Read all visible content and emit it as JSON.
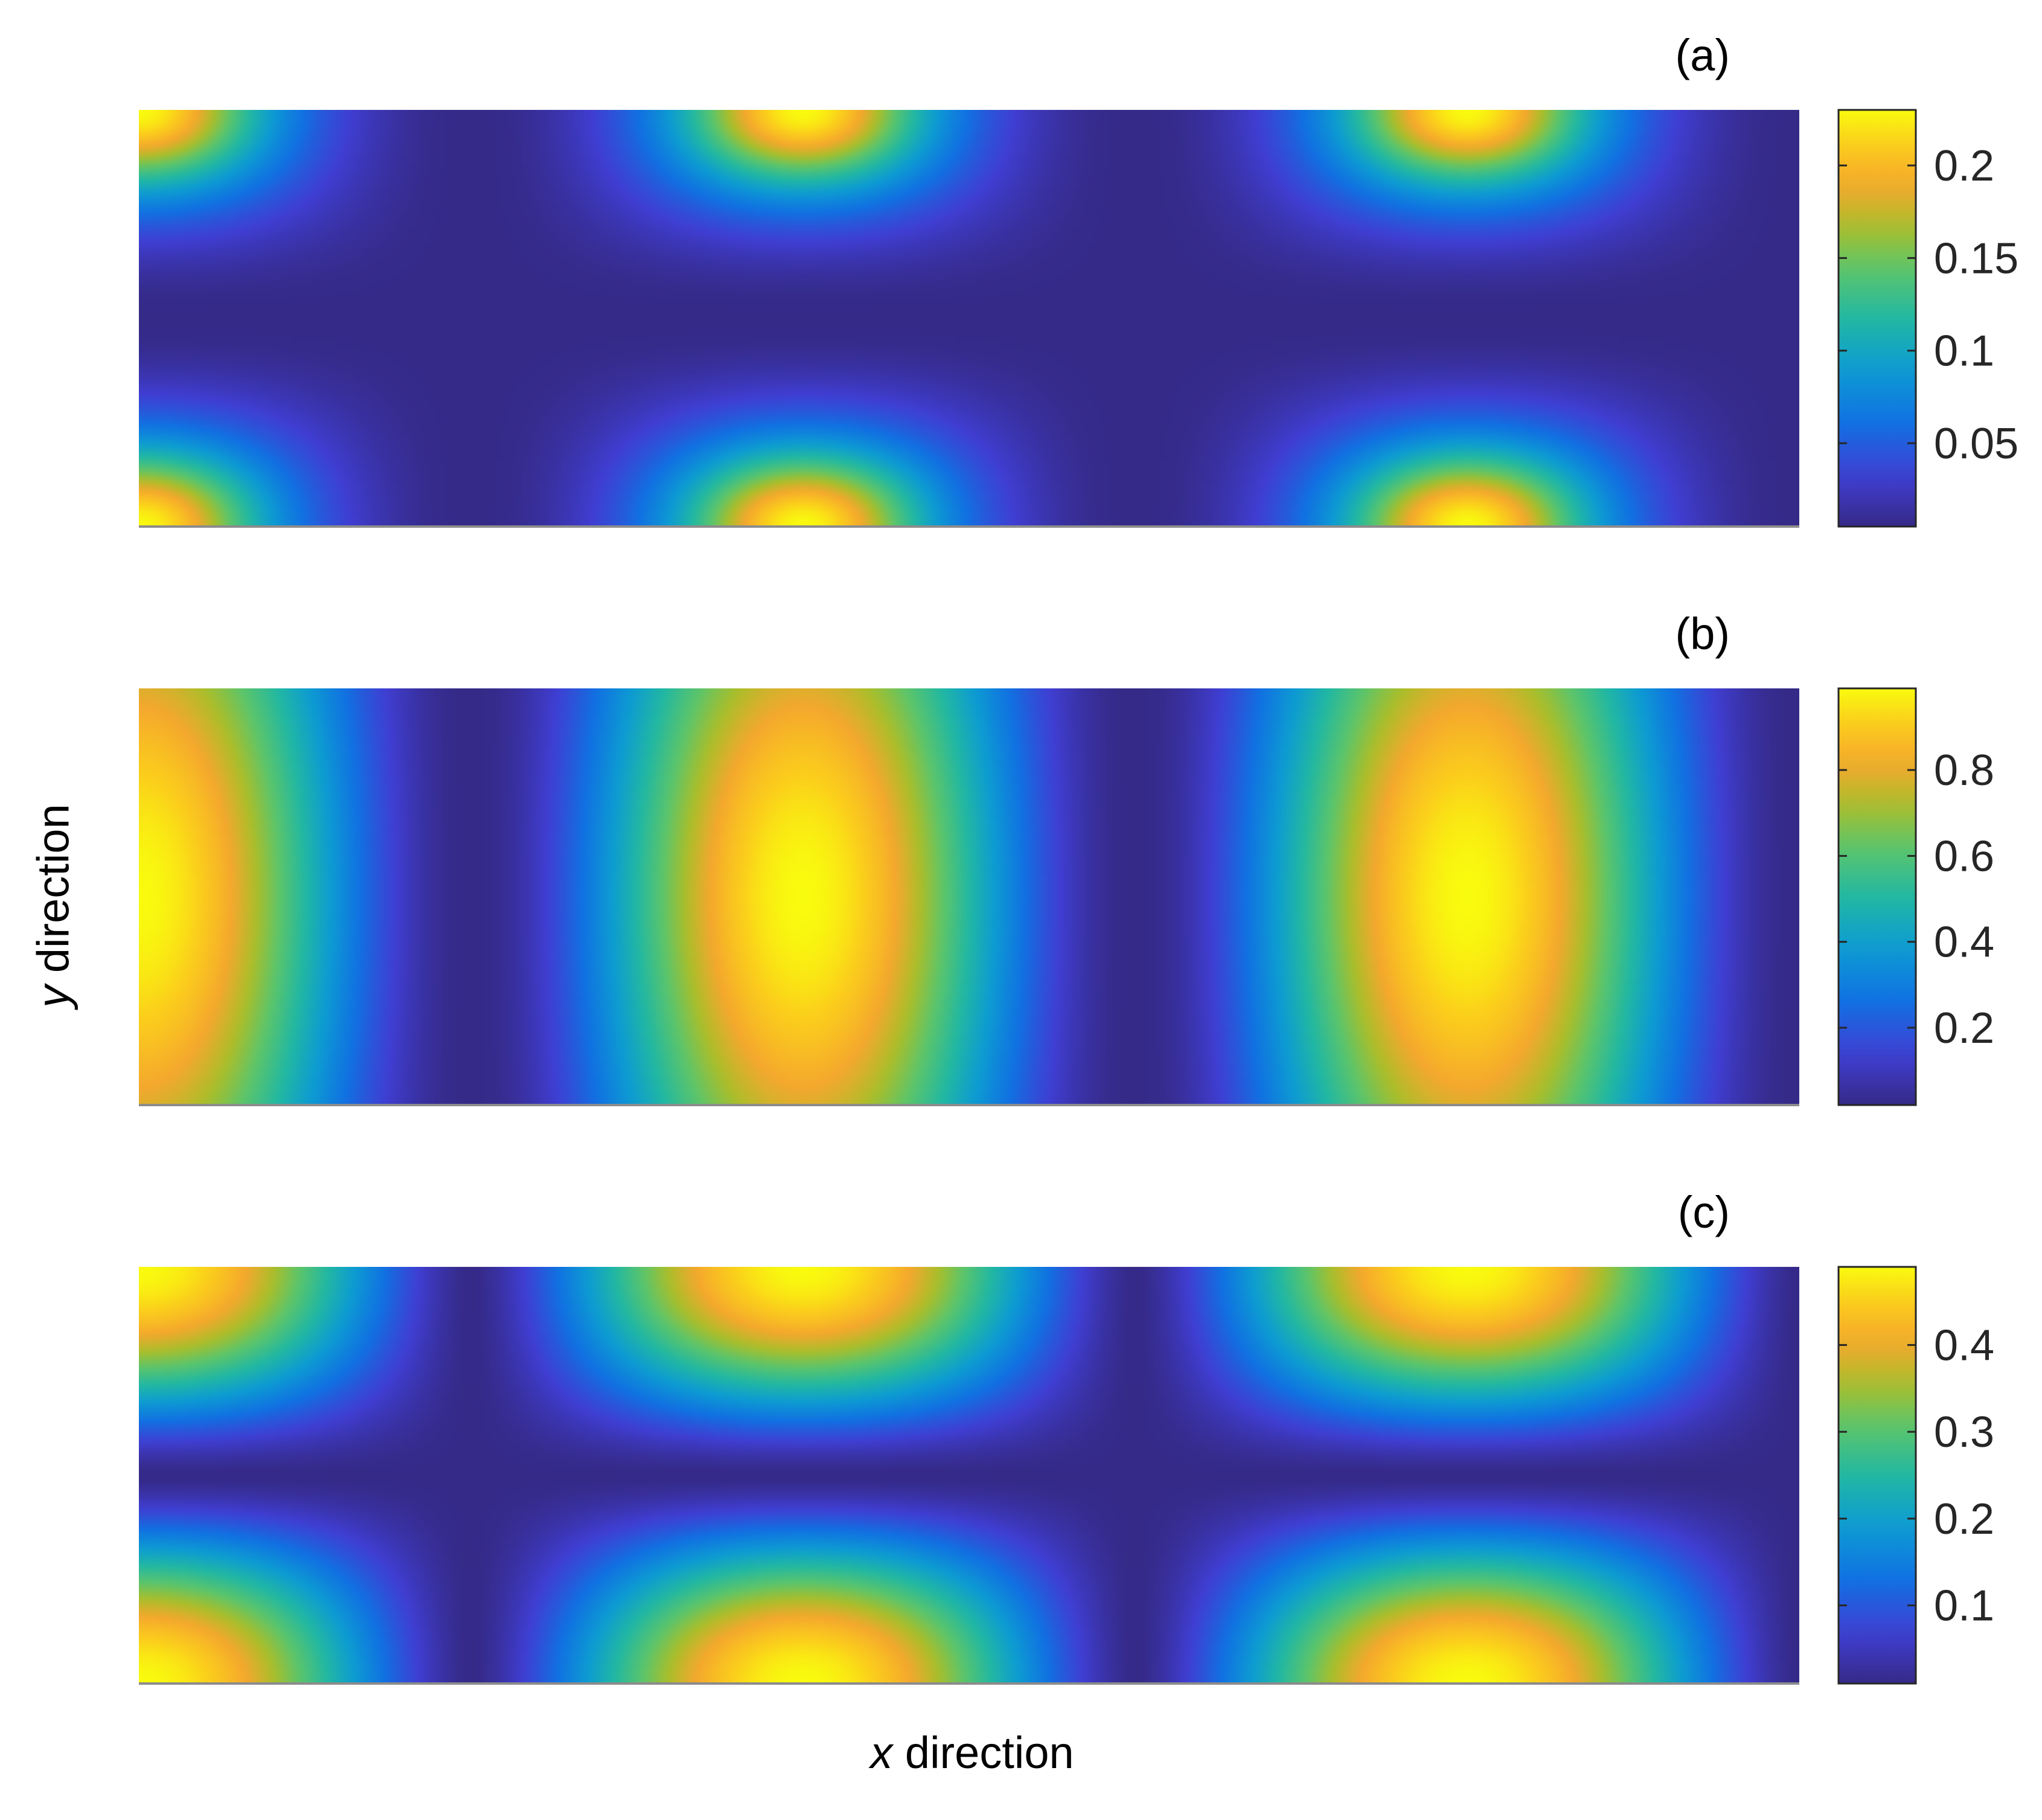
{
  "figure": {
    "xlabel_var": "x",
    "xlabel_rest": " direction",
    "ylabel_var": "y",
    "ylabel_rest": " direction"
  },
  "chart_data": [
    {
      "type": "heatmap",
      "title": "(a)",
      "xlabel": "x direction",
      "ylabel": "y direction",
      "pattern": "two cell period along x, value near zero on the centre line and at the dividers, peak about 0.23 at the four corners",
      "value_range": [
        0.005,
        0.23
      ],
      "colorbar_ticks": [
        0.05,
        0.1,
        0.15,
        0.2
      ],
      "colorbar_tick_labels": [
        "0.05",
        "0.1",
        "0.15",
        "0.2"
      ],
      "colormap": "parula"
    },
    {
      "type": "heatmap",
      "title": "(b)",
      "xlabel": "x direction",
      "ylabel": "y direction",
      "pattern": "vertical bands, peaks about 0.99 at the two band centres and the side edges, near zero at three dividing lines",
      "value_range": [
        0.02,
        0.99
      ],
      "colorbar_ticks": [
        0.2,
        0.4,
        0.6,
        0.8
      ],
      "colorbar_tick_labels": [
        "0.2",
        "0.4",
        "0.6",
        "0.8"
      ],
      "colormap": "parula"
    },
    {
      "type": "heatmap",
      "title": "(c)",
      "xlabel": "x direction",
      "ylabel": "y direction",
      "pattern": "near zero on the centre line and at the dividers, peaks about 0.49 at the top and bottom edges between dividers",
      "value_range": [
        0.01,
        0.49
      ],
      "colorbar_ticks": [
        0.1,
        0.2,
        0.3,
        0.4
      ],
      "colorbar_tick_labels": [
        "0.1",
        "0.2",
        "0.3",
        "0.4"
      ],
      "colormap": "parula"
    }
  ]
}
